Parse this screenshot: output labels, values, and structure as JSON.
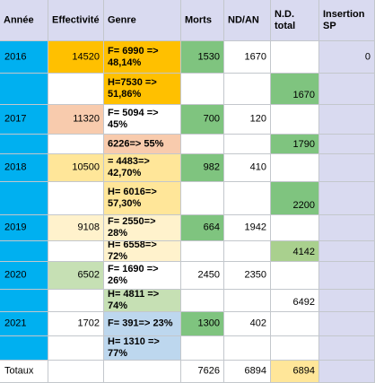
{
  "colors": {
    "header": "#d9daf0",
    "year_blue": "#00b0f0",
    "lavender": "#d9daf0",
    "orange": "#ffc000",
    "peach": "#f8cbad",
    "yellow": "#ffe699",
    "pale_yellow": "#fff2cc",
    "green_light": "#c6e0b4",
    "green": "#7fc47f",
    "green_olive": "#a9d08e",
    "blue_light": "#bdd7ee",
    "white": "#ffffff"
  },
  "header": {
    "annee": "Année",
    "effectivite": "Effectivité",
    "genre": "Genre",
    "morts": "Morts",
    "nd_an": "ND/AN",
    "nd_total": "N.D. total",
    "insertion_sp": "Insertion SP"
  },
  "rows": [
    {
      "annee": "2016",
      "effectivite": "14520",
      "genre": "F= 6990 => 48,14%",
      "morts": "1530",
      "nd_an": "1670",
      "nd_total": "",
      "insertion_sp": "0"
    },
    {
      "annee": "",
      "effectivite": "",
      "genre": "H=7530 => 51,86%",
      "morts": "",
      "nd_an": "",
      "nd_total": "1670",
      "insertion_sp": ""
    },
    {
      "annee": "2017",
      "effectivite": "11320",
      "genre": "F= 5094 => 45%",
      "morts": "700",
      "nd_an": "120",
      "nd_total": "",
      "insertion_sp": ""
    },
    {
      "annee": "",
      "effectivite": "",
      "genre": "6226=> 55%",
      "morts": "",
      "nd_an": "",
      "nd_total": "1790",
      "insertion_sp": ""
    },
    {
      "annee": "2018",
      "effectivite": "10500",
      "genre": "= 4483=> 42,70%",
      "morts": "982",
      "nd_an": "410",
      "nd_total": "",
      "insertion_sp": ""
    },
    {
      "annee": "",
      "effectivite": "",
      "genre": "H= 6016=> 57,30%",
      "morts": "",
      "nd_an": "",
      "nd_total": "2200",
      "insertion_sp": ""
    },
    {
      "annee": "2019",
      "effectivite": "9108",
      "genre": "F= 2550=> 28%",
      "morts": "664",
      "nd_an": "1942",
      "nd_total": "",
      "insertion_sp": ""
    },
    {
      "annee": "",
      "effectivite": "",
      "genre": "H= 6558=> 72%",
      "morts": "",
      "nd_an": "",
      "nd_total": "4142",
      "insertion_sp": ""
    },
    {
      "annee": "2020",
      "effectivite": "6502",
      "genre": "F= 1690 => 26%",
      "morts": "2450",
      "nd_an": "2350",
      "nd_total": "",
      "insertion_sp": ""
    },
    {
      "annee": "",
      "effectivite": "",
      "genre": "H= 4811 => 74%",
      "morts": "",
      "nd_an": "",
      "nd_total": "6492",
      "insertion_sp": ""
    },
    {
      "annee": "2021",
      "effectivite": "1702",
      "genre": "F= 391=> 23%",
      "morts": "1300",
      "nd_an": "402",
      "nd_total": "",
      "insertion_sp": ""
    },
    {
      "annee": "",
      "effectivite": "",
      "genre": "H= 1310 => 77%",
      "morts": "",
      "nd_an": "",
      "nd_total": "",
      "insertion_sp": ""
    }
  ],
  "totals": {
    "label": "Totaux",
    "effectivite": "",
    "genre": "",
    "morts": "7626",
    "nd_an": "6894",
    "nd_total": "6894",
    "insertion_sp": ""
  }
}
